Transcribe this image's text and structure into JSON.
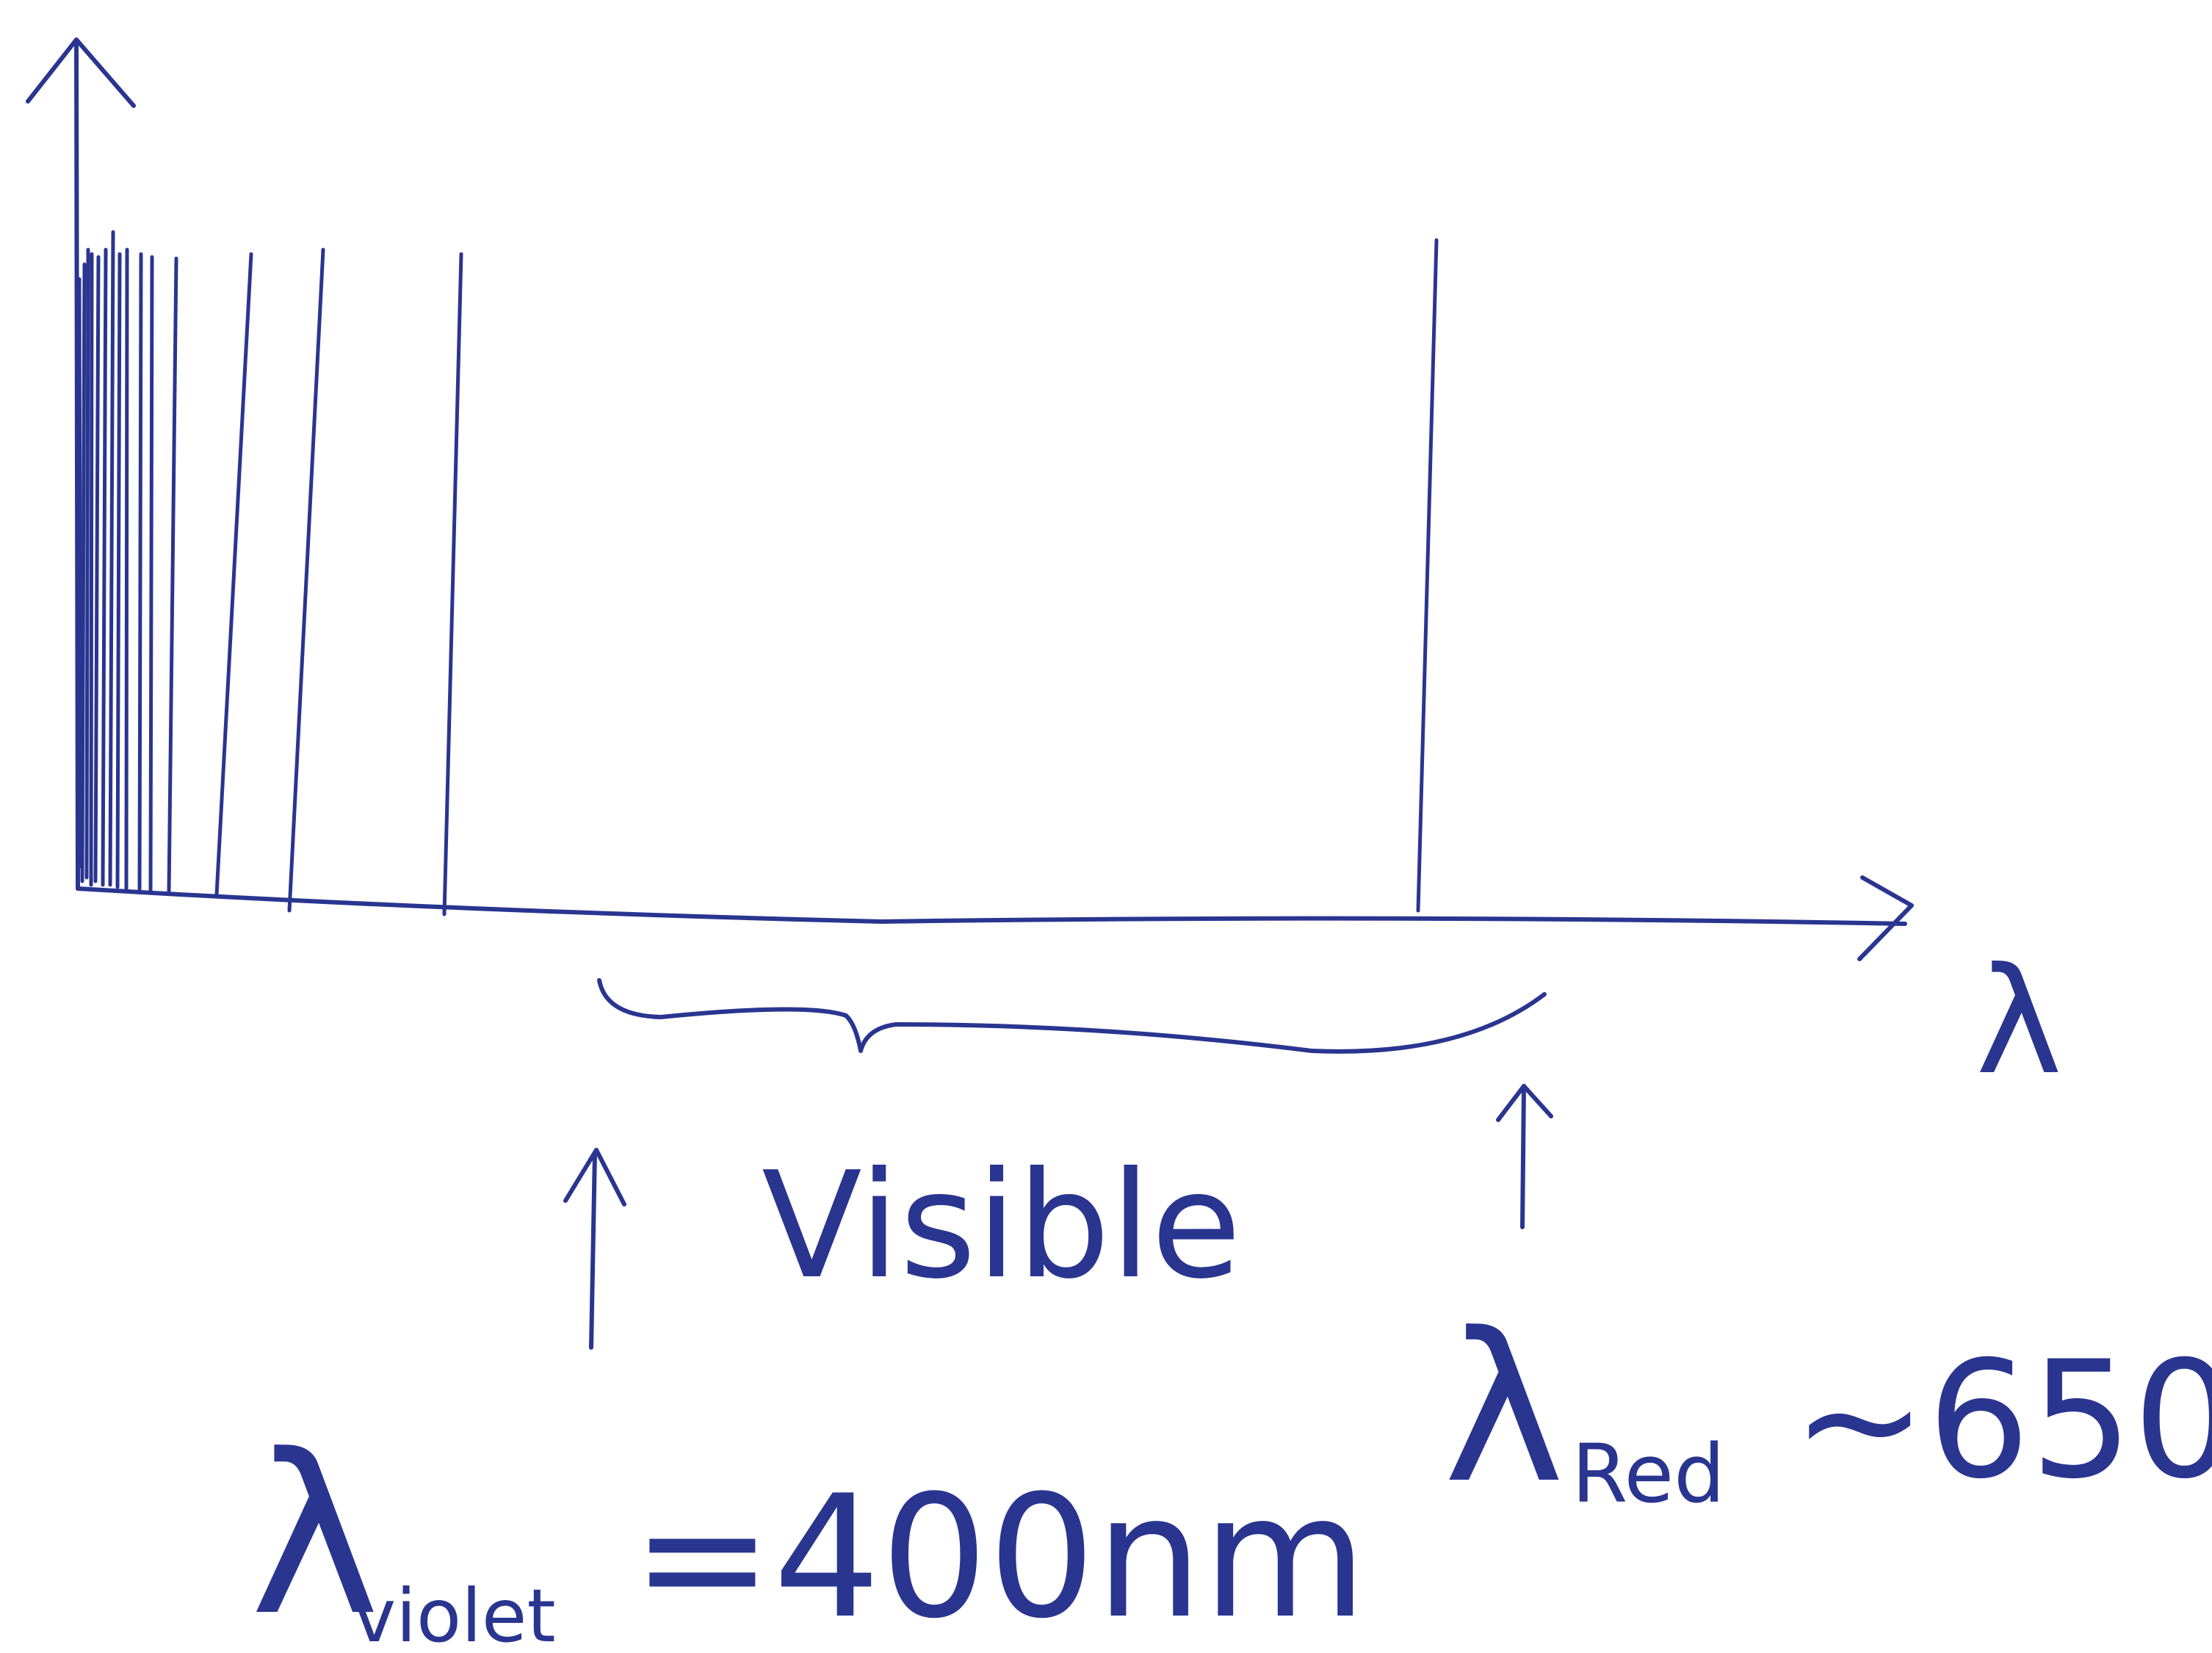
{
  "axis_label": "λ",
  "brace_label": "Visible",
  "violet_label": {
    "symbol": "λ",
    "subscript": "violet",
    "value": "=400nm"
  },
  "red_label": {
    "symbol": "λ",
    "subscript": "Red",
    "value": "~650"
  }
}
